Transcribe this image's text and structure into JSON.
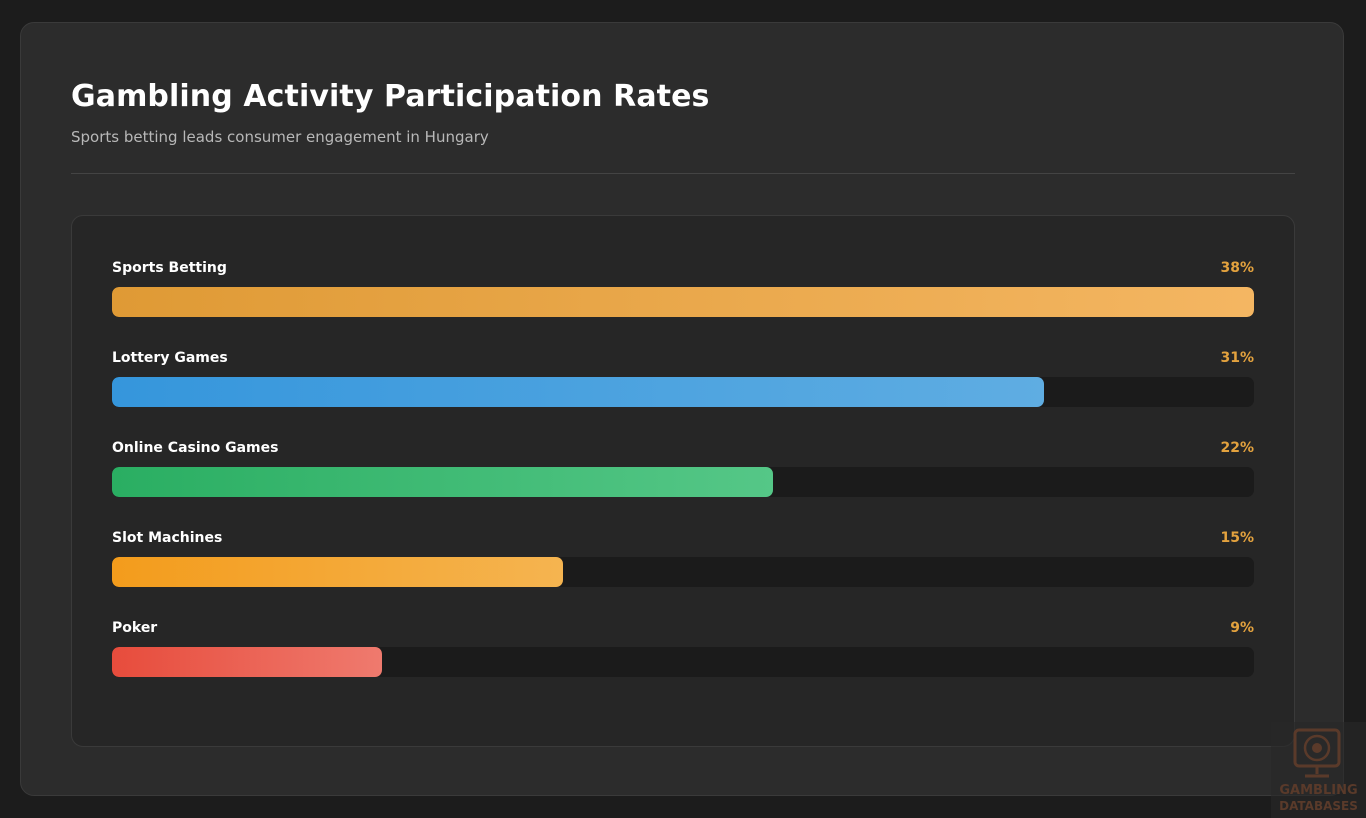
{
  "header": {
    "title": "Gambling Activity Participation Rates",
    "subtitle": "Sports betting leads consumer engagement in Hungary"
  },
  "chart_data": {
    "type": "bar",
    "orientation": "horizontal",
    "title": "Gambling Activity Participation Rates",
    "subtitle": "Sports betting leads consumer engagement in Hungary",
    "xlim": [
      0,
      38
    ],
    "categories": [
      "Sports Betting",
      "Lottery Games",
      "Online Casino Games",
      "Slot Machines",
      "Poker"
    ],
    "values": [
      38,
      31,
      22,
      15,
      9
    ],
    "value_labels": [
      "38%",
      "31%",
      "22%",
      "15%",
      "9%"
    ],
    "colors": [
      [
        "#df9a35",
        "#f4b662"
      ],
      [
        "#3596dc",
        "#5fade2"
      ],
      [
        "#2aae62",
        "#55c787"
      ],
      [
        "#f39c1c",
        "#f5b450"
      ],
      [
        "#e74c3c",
        "#ef7a6e"
      ]
    ],
    "value_label_color": "#e3a23e",
    "grid": false
  },
  "watermark": {
    "line1": "GAMBLING",
    "line2": "DATABASES"
  }
}
